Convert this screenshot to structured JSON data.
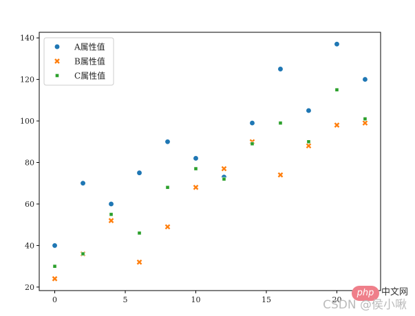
{
  "chart_data": {
    "type": "scatter",
    "x": [
      0,
      2,
      4,
      6,
      8,
      10,
      12,
      14,
      16,
      18,
      20,
      22
    ],
    "series": [
      {
        "name": "A属性值",
        "marker": "circle",
        "color": "#1f77b4",
        "values": [
          40,
          70,
          60,
          75,
          90,
          82,
          73,
          99,
          125,
          105,
          137,
          120
        ]
      },
      {
        "name": "B属性值",
        "marker": "x",
        "color": "#ff7f0e",
        "values": [
          24,
          36,
          52,
          32,
          49,
          68,
          77,
          90,
          74,
          88,
          98,
          99
        ]
      },
      {
        "name": "C属性值",
        "marker": "square",
        "color": "#2ca02c",
        "values": [
          30,
          36,
          55,
          46,
          68,
          77,
          72,
          89,
          99,
          90,
          115,
          101
        ]
      }
    ],
    "xticks": [
      0,
      5,
      10,
      15,
      20
    ],
    "yticks": [
      20,
      40,
      60,
      80,
      100,
      120,
      140
    ],
    "xlim": [
      -1.1,
      23.1
    ],
    "ylim": [
      18.3,
      142.7
    ],
    "legend": "top-left",
    "grid": false
  },
  "watermark": {
    "badge": "php",
    "site": "中文网",
    "text": "CSDN @侯小啾"
  }
}
